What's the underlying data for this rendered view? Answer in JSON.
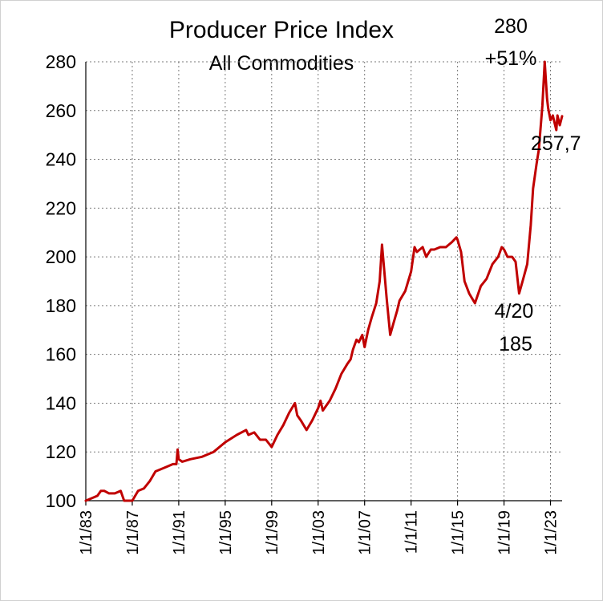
{
  "chart_data": {
    "type": "line",
    "title": "Producer Price Index",
    "subtitle": "All Commodities",
    "xlabel": "",
    "ylabel": "",
    "ylim": [
      100,
      280
    ],
    "xlim": [
      1983.0,
      2024.0
    ],
    "y_ticks": [
      100,
      120,
      140,
      160,
      180,
      200,
      220,
      240,
      260,
      280
    ],
    "x_tick_labels": [
      "1/1/83",
      "1/1/87",
      "1/1/91",
      "1/1/95",
      "1/1/99",
      "1/1/03",
      "1/1/07",
      "1/1/11",
      "1/1/15",
      "1/1/19",
      "1/1/23"
    ],
    "x_tick_years": [
      1983,
      1987,
      1991,
      1995,
      1999,
      2003,
      2007,
      2011,
      2015,
      2019,
      2023
    ],
    "grid": true,
    "line_color": "#c00000",
    "series": [
      {
        "x": [
          1983.0,
          1983.5,
          1984.0,
          1984.3,
          1984.6,
          1985.0,
          1985.5,
          1986.0,
          1986.3,
          1986.6,
          1987.0,
          1987.5,
          1988.0,
          1988.5,
          1989.0,
          1989.5,
          1990.0,
          1990.5,
          1990.8,
          1990.9,
          1991.0,
          1991.3,
          1992.0,
          1993.0,
          1994.0,
          1995.0,
          1996.0,
          1996.8,
          1997.0,
          1997.5,
          1998.0,
          1998.5,
          1999.0,
          1999.5,
          2000.0,
          2000.5,
          2001.0,
          2001.2,
          2001.5,
          2002.0,
          2002.5,
          2003.0,
          2003.2,
          2003.4,
          2004.0,
          2004.5,
          2005.0,
          2005.5,
          2005.8,
          2006.0,
          2006.3,
          2006.5,
          2006.8,
          2007.0,
          2007.3,
          2007.6,
          2008.0,
          2008.3,
          2008.5,
          2008.9,
          2009.2,
          2009.5,
          2009.8,
          2010.0,
          2010.5,
          2011.0,
          2011.3,
          2011.5,
          2012.0,
          2012.3,
          2012.7,
          2013.0,
          2013.5,
          2014.0,
          2014.5,
          2014.9,
          2015.0,
          2015.3,
          2015.6,
          2016.0,
          2016.5,
          2017.0,
          2017.5,
          2018.0,
          2018.5,
          2018.8,
          2019.0,
          2019.3,
          2019.7,
          2020.0,
          2020.3,
          2020.6,
          2021.0,
          2021.3,
          2021.5,
          2021.8,
          2022.0,
          2022.3,
          2022.5,
          2022.7,
          2022.8,
          2023.0,
          2023.2,
          2023.5,
          2023.6,
          2023.8,
          2024.0
        ],
        "y": [
          100,
          101,
          102,
          104,
          104,
          103,
          103,
          104,
          100,
          100,
          100,
          104,
          105,
          108,
          112,
          113,
          114,
          115,
          115,
          121,
          117,
          116,
          117,
          118,
          120,
          124,
          127,
          129,
          127,
          128,
          125,
          125,
          122,
          127,
          131,
          136,
          140,
          135,
          133,
          129,
          133,
          138,
          141,
          137,
          141,
          146,
          152,
          156,
          158,
          162,
          166,
          165,
          168,
          163,
          170,
          175,
          181,
          190,
          205,
          183,
          168,
          173,
          178,
          182,
          186,
          194,
          204,
          202,
          204,
          200,
          203,
          203,
          204,
          204,
          206,
          208,
          207,
          202,
          190,
          185,
          181,
          188,
          191,
          197,
          200,
          204,
          203,
          200,
          200,
          198,
          185,
          190,
          197,
          213,
          228,
          238,
          244,
          262,
          280,
          265,
          261,
          256,
          258,
          252,
          258,
          254,
          257.7
        ]
      }
    ],
    "annotations": {
      "peak_value": "280",
      "peak_change": "+51%",
      "last_value": "257,7",
      "trough_date": "4/20",
      "trough_value": "185"
    }
  }
}
